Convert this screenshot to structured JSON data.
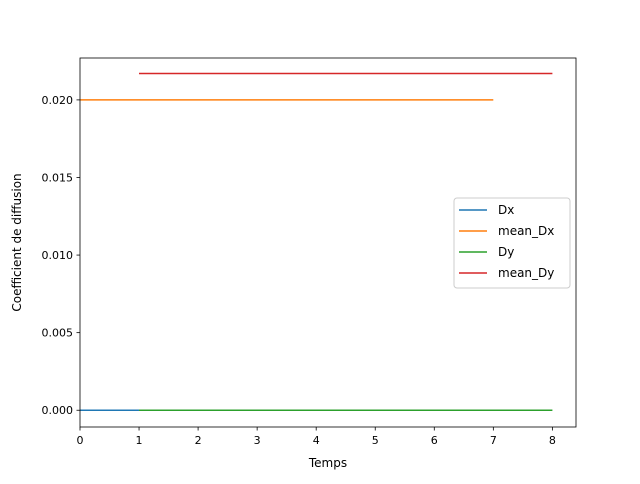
{
  "chart_data": {
    "type": "line",
    "title": "",
    "xlabel": "Temps",
    "ylabel": "Coefficient de diffusion",
    "xlim": [
      0,
      8.4
    ],
    "ylim": [
      -0.00108,
      0.0227
    ],
    "xticks": [
      0,
      1,
      2,
      3,
      4,
      5,
      6,
      7,
      8
    ],
    "xtick_labels": [
      "0",
      "1",
      "2",
      "3",
      "4",
      "5",
      "6",
      "7",
      "8"
    ],
    "yticks": [
      0.0,
      0.005,
      0.01,
      0.015,
      0.02
    ],
    "ytick_labels": [
      "0.000",
      "0.005",
      "0.010",
      "0.015",
      "0.020"
    ],
    "grid": false,
    "legend_position": "center-right",
    "series": [
      {
        "name": "Dx",
        "color": "#1f77b4",
        "x": [
          0,
          7
        ],
        "y": [
          0.0,
          0.0
        ]
      },
      {
        "name": "mean_Dx",
        "color": "#ff7f0e",
        "x": [
          0,
          7
        ],
        "y": [
          0.02,
          0.02
        ]
      },
      {
        "name": "Dy",
        "color": "#2ca02c",
        "x": [
          1,
          8
        ],
        "y": [
          0.0,
          0.0
        ]
      },
      {
        "name": "mean_Dy",
        "color": "#d62728",
        "x": [
          1,
          8
        ],
        "y": [
          0.0217,
          0.0217
        ]
      }
    ]
  }
}
